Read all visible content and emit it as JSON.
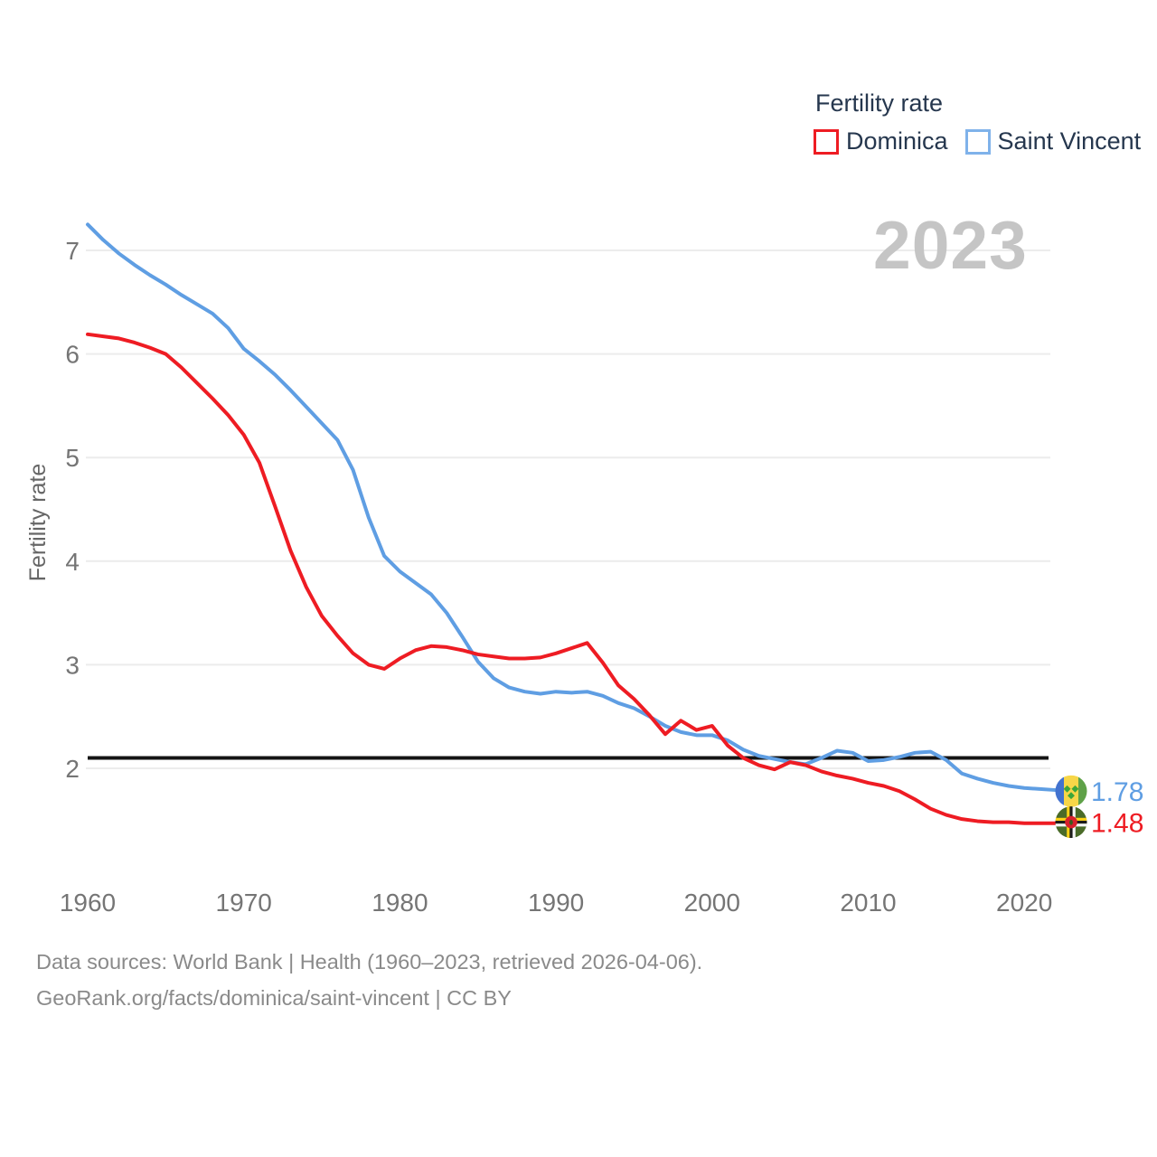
{
  "legend": {
    "title": "Fertility rate",
    "series": [
      {
        "label": "Dominica",
        "color": "#ee1c23"
      },
      {
        "label": "Saint Vincent",
        "color": "#7fb2ea"
      }
    ]
  },
  "watermark": "2023",
  "axes": {
    "y_title": "Fertility rate",
    "y_ticks": [
      2,
      3,
      4,
      5,
      6,
      7
    ],
    "x_ticks": [
      1960,
      1970,
      1980,
      1990,
      2000,
      2010,
      2020
    ]
  },
  "end_labels": {
    "saint_vincent": "1.78",
    "dominica": "1.48"
  },
  "footer": {
    "line1": "Data sources: World Bank | Health (1960–2023, retrieved 2026-04-06).",
    "line2": "GeoRank.org/facts/dominica/saint-vincent | CC BY"
  },
  "chart_data": {
    "type": "line",
    "title": "Fertility rate",
    "ylabel": "Fertility rate",
    "xlabel": "",
    "grid": "horizontal",
    "legend_position": "top-right",
    "xlim": [
      1960,
      2023
    ],
    "ylim": [
      1.35,
      7.45
    ],
    "x_ticks": [
      1960,
      1970,
      1980,
      1990,
      2000,
      2010,
      2020
    ],
    "y_ticks": [
      2,
      3,
      4,
      5,
      6,
      7
    ],
    "reference_line": {
      "value": 2.1,
      "color": "#141414"
    },
    "x": [
      1960,
      1961,
      1962,
      1963,
      1964,
      1965,
      1966,
      1967,
      1968,
      1969,
      1970,
      1971,
      1972,
      1973,
      1974,
      1975,
      1976,
      1977,
      1978,
      1979,
      1980,
      1981,
      1982,
      1983,
      1984,
      1985,
      1986,
      1987,
      1988,
      1989,
      1990,
      1991,
      1992,
      1993,
      1994,
      1995,
      1996,
      1997,
      1998,
      1999,
      2000,
      2001,
      2002,
      2003,
      2004,
      2005,
      2006,
      2007,
      2008,
      2009,
      2010,
      2011,
      2012,
      2013,
      2014,
      2015,
      2016,
      2017,
      2018,
      2019,
      2020,
      2021,
      2022,
      2023
    ],
    "series": [
      {
        "name": "Saint Vincent",
        "color": "#5f9ee3",
        "end_value": 1.78,
        "values": [
          7.25,
          7.1,
          6.97,
          6.86,
          6.76,
          6.67,
          6.57,
          6.48,
          6.39,
          6.25,
          6.05,
          5.93,
          5.8,
          5.65,
          5.49,
          5.33,
          5.17,
          4.88,
          4.42,
          4.05,
          3.9,
          3.79,
          3.68,
          3.5,
          3.27,
          3.03,
          2.87,
          2.78,
          2.74,
          2.72,
          2.74,
          2.73,
          2.74,
          2.7,
          2.63,
          2.58,
          2.5,
          2.41,
          2.35,
          2.32,
          2.32,
          2.27,
          2.18,
          2.12,
          2.09,
          2.06,
          2.04,
          2.1,
          2.17,
          2.15,
          2.07,
          2.08,
          2.11,
          2.15,
          2.16,
          2.08,
          1.95,
          1.9,
          1.86,
          1.83,
          1.81,
          1.8,
          1.79,
          1.78
        ]
      },
      {
        "name": "Dominica",
        "color": "#ee1c23",
        "end_value": 1.48,
        "values": [
          6.19,
          6.17,
          6.15,
          6.11,
          6.06,
          6.0,
          5.87,
          5.72,
          5.57,
          5.41,
          5.22,
          4.95,
          4.53,
          4.1,
          3.75,
          3.47,
          3.28,
          3.11,
          3.0,
          2.96,
          3.06,
          3.14,
          3.18,
          3.17,
          3.14,
          3.1,
          3.08,
          3.06,
          3.06,
          3.07,
          3.11,
          3.16,
          3.21,
          3.02,
          2.8,
          2.67,
          2.51,
          2.33,
          2.46,
          2.37,
          2.41,
          2.22,
          2.1,
          2.03,
          1.99,
          2.06,
          2.03,
          1.97,
          1.93,
          1.9,
          1.86,
          1.83,
          1.78,
          1.7,
          1.61,
          1.55,
          1.51,
          1.49,
          1.48,
          1.48,
          1.47,
          1.47,
          1.47,
          1.48
        ]
      }
    ]
  }
}
